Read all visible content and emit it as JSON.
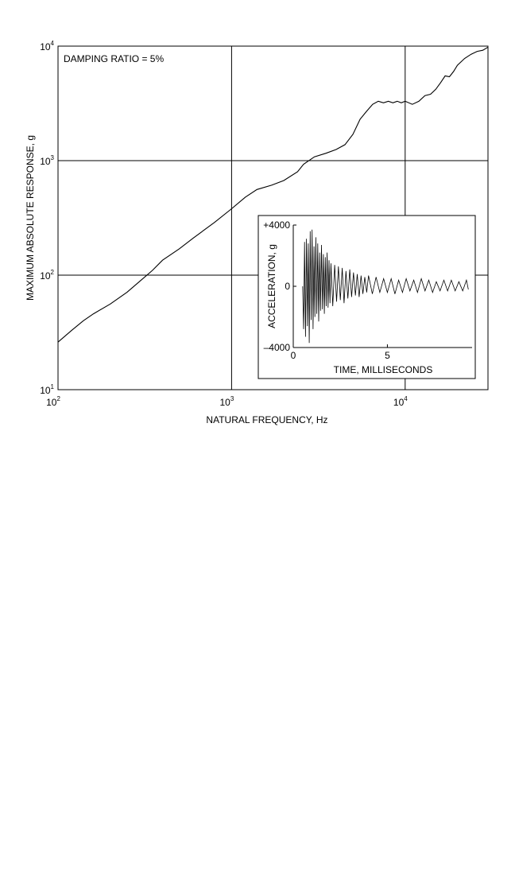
{
  "chart_data": [
    {
      "type": "line",
      "title": "",
      "annotation": "DAMPING RATIO = 5%",
      "xlabel": "NATURAL FREQUENCY, Hz",
      "ylabel": "MAXIMUM ABSOLUTE RESPONSE, g",
      "x_scale": "log",
      "y_scale": "log",
      "xlim": [
        100,
        30000
      ],
      "ylim": [
        10,
        10000
      ],
      "grid": true,
      "x_ticks": [
        {
          "value": 100,
          "base": "10",
          "exp": "2"
        },
        {
          "value": 1000,
          "base": "10",
          "exp": "3"
        },
        {
          "value": 10000,
          "base": "10",
          "exp": "4"
        }
      ],
      "y_ticks": [
        {
          "value": 10,
          "base": "10",
          "exp": "1"
        },
        {
          "value": 100,
          "base": "10",
          "exp": "2"
        },
        {
          "value": 1000,
          "base": "10",
          "exp": "3"
        },
        {
          "value": 10000,
          "base": "10",
          "exp": "4"
        }
      ],
      "series": [
        {
          "x": [
            100,
            120,
            140,
            160,
            200,
            250,
            300,
            350,
            400,
            500,
            600,
            700,
            800,
            1000,
            1200,
            1400,
            1700,
            2000,
            2400,
            2600,
            3000,
            3500,
            4000,
            4500,
            5000,
            5500,
            6000,
            6500,
            7000,
            7500,
            8000,
            8500,
            9000,
            9500,
            10000,
            11000,
            12000,
            13000,
            14000,
            15000,
            16000,
            17000,
            18000,
            19000,
            20000,
            22000,
            24000,
            26000,
            28000,
            30000
          ],
          "y": [
            26,
            33,
            40,
            46,
            56,
            71,
            90,
            110,
            135,
            170,
            210,
            250,
            290,
            380,
            480,
            560,
            610,
            670,
            800,
            930,
            1080,
            1160,
            1250,
            1380,
            1700,
            2300,
            2700,
            3100,
            3300,
            3200,
            3300,
            3200,
            3300,
            3200,
            3300,
            3100,
            3300,
            3700,
            3800,
            4200,
            4800,
            5500,
            5400,
            6000,
            6800,
            7800,
            8500,
            9000,
            9200,
            9800
          ]
        }
      ]
    },
    {
      "type": "line",
      "title": "",
      "xlabel": "TIME, MILLISECONDS",
      "ylabel": "ACCELERATION, g",
      "xlim": [
        0,
        9.5
      ],
      "ylim": [
        -4000,
        4000
      ],
      "grid": false,
      "x_ticks": [
        {
          "value": 0,
          "label": "0"
        },
        {
          "value": 5,
          "label": "5"
        }
      ],
      "y_ticks": [
        {
          "value": 4000,
          "label": "+4000"
        },
        {
          "value": 0,
          "label": "0"
        },
        {
          "value": -4000,
          "label": "–4000"
        }
      ],
      "series": [
        {
          "x": [
            0.5,
            0.55,
            0.6,
            0.65,
            0.7,
            0.75,
            0.8,
            0.85,
            0.9,
            0.95,
            1.0,
            1.05,
            1.1,
            1.15,
            1.2,
            1.25,
            1.3,
            1.35,
            1.4,
            1.45,
            1.5,
            1.55,
            1.6,
            1.65,
            1.7,
            1.75,
            1.8,
            1.85,
            1.9,
            1.95,
            2.0,
            2.1,
            2.2,
            2.3,
            2.4,
            2.5,
            2.6,
            2.7,
            2.8,
            2.9,
            3.0,
            3.1,
            3.2,
            3.3,
            3.4,
            3.5,
            3.6,
            3.7,
            3.8,
            3.9,
            4.0,
            4.2,
            4.4,
            4.6,
            4.8,
            5.0,
            5.2,
            5.4,
            5.6,
            5.8,
            6.0,
            6.2,
            6.4,
            6.6,
            6.8,
            7.0,
            7.2,
            7.4,
            7.6,
            7.8,
            8.0,
            8.2,
            8.4,
            8.6,
            8.8,
            9.0,
            9.2,
            9.3
          ],
          "y": [
            0,
            -2800,
            2900,
            -3300,
            3100,
            -2600,
            2800,
            -3700,
            3600,
            -2200,
            3700,
            -2800,
            2600,
            -2000,
            3200,
            -1800,
            2800,
            -2300,
            2200,
            -1600,
            2700,
            -1500,
            2100,
            -1800,
            1900,
            -1300,
            2200,
            -1400,
            1700,
            -1100,
            1500,
            -1300,
            1400,
            -1000,
            1300,
            -900,
            1200,
            -1100,
            1000,
            -800,
            1100,
            -700,
            900,
            -600,
            800,
            -700,
            700,
            -500,
            600,
            -400,
            700,
            -500,
            600,
            -400,
            500,
            -400,
            500,
            -500,
            400,
            -400,
            500,
            -300,
            400,
            -400,
            500,
            -300,
            400,
            -400,
            300,
            -300,
            400,
            -300,
            400,
            -300,
            300,
            -300,
            400,
            -200
          ]
        }
      ]
    }
  ]
}
